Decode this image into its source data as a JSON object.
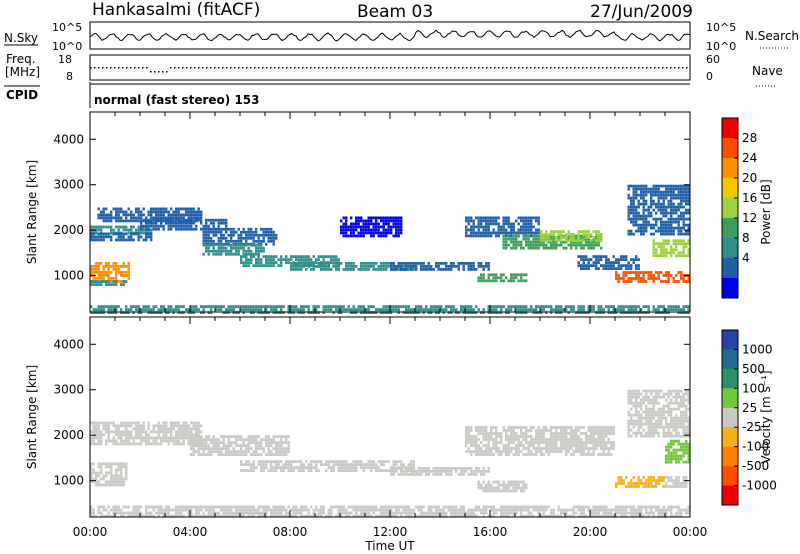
{
  "header": {
    "title": "Hankasalmi (fitACF)",
    "beam": "Beam 03",
    "date": "27/Jun/2009"
  },
  "panels": {
    "nsky": {
      "left_label": "N.Sky",
      "right_label": "N.Search",
      "left_ticks": [
        "10^5",
        "10^0"
      ],
      "right_ticks": [
        "10^5",
        "10^0"
      ]
    },
    "freq": {
      "left_label_top": "Freq.",
      "left_label_bottom": "[MHz]",
      "right_label": "Nave",
      "left_ticks": [
        "18",
        "8"
      ],
      "right_ticks": [
        "60",
        "0"
      ]
    },
    "cpid": {
      "label": "CPID",
      "text": "normal (fast stereo) 153"
    }
  },
  "colorbars": {
    "power": {
      "title": "Power [dB]",
      "tick_labels": [
        "28",
        "24",
        "20",
        "16",
        "12",
        "8",
        "4"
      ],
      "colors": [
        "#ee0000",
        "#ff4d00",
        "#ff8c00",
        "#f2c800",
        "#9ed23a",
        "#3c9e5a",
        "#2f8f8a",
        "#1f5faa",
        "#0000ee"
      ]
    },
    "velocity": {
      "title": "Velocity [m s⁻¹]",
      "tick_labels": [
        "1000",
        "500",
        "100",
        "25",
        "-25",
        "-100",
        "-500",
        "-1000"
      ],
      "colors": [
        "#2244aa",
        "#226b8a",
        "#2f8f6a",
        "#6fc83a",
        "#c8c8c4",
        "#f5b01e",
        "#ff8000",
        "#ff4d00",
        "#ee0000"
      ]
    }
  },
  "chart_data": [
    {
      "type": "heatmap",
      "name": "power",
      "xlabel": "Time UT",
      "ylabel": "Slant Range [km]",
      "xlim": [
        "00:00",
        "00:00"
      ],
      "x_ticks": [
        "00:00",
        "04:00",
        "08:00",
        "12:00",
        "16:00",
        "20:00",
        "00:00"
      ],
      "ylim": [
        200,
        4600
      ],
      "y_ticks": [
        1000,
        2000,
        3000,
        4000
      ],
      "value_range": [
        2,
        30
      ],
      "series": [
        {
          "t": [
            0,
            2.5
          ],
          "range": [
            1950,
            2100
          ],
          "value": 11
        },
        {
          "t": [
            0,
            2.5
          ],
          "range": [
            1800,
            1950
          ],
          "value": 7
        },
        {
          "t": [
            0,
            1.6
          ],
          "range": [
            900,
            1300
          ],
          "value": 23
        },
        {
          "t": [
            0,
            1.6
          ],
          "range": [
            800,
            900
          ],
          "value": 9
        },
        {
          "t": [
            0.3,
            4.5
          ],
          "range": [
            2200,
            2500
          ],
          "value": 6
        },
        {
          "t": [
            2,
            5.5
          ],
          "range": [
            2050,
            2250
          ],
          "value": 8
        },
        {
          "t": [
            4.5,
            7.5
          ],
          "range": [
            1700,
            2050
          ],
          "value": 7
        },
        {
          "t": [
            4.5,
            7
          ],
          "range": [
            1450,
            1700
          ],
          "value": 11
        },
        {
          "t": [
            6,
            10
          ],
          "range": [
            1250,
            1450
          ],
          "value": 10
        },
        {
          "t": [
            8,
            13
          ],
          "range": [
            1150,
            1300
          ],
          "value": 9
        },
        {
          "t": [
            12,
            16
          ],
          "range": [
            1150,
            1300
          ],
          "value": 6
        },
        {
          "t": [
            15.5,
            17.5
          ],
          "range": [
            900,
            1050
          ],
          "value": 12
        },
        {
          "t": [
            15,
            18
          ],
          "range": [
            1900,
            2300
          ],
          "value": 8
        },
        {
          "t": [
            16.5,
            20.5
          ],
          "range": [
            1600,
            1900
          ],
          "value": 13
        },
        {
          "t": [
            18,
            20.5
          ],
          "range": [
            1800,
            2000
          ],
          "value": 16
        },
        {
          "t": [
            19.5,
            22
          ],
          "range": [
            1150,
            1450
          ],
          "value": 7
        },
        {
          "t": [
            21,
            24
          ],
          "range": [
            900,
            1100
          ],
          "value": 25
        },
        {
          "t": [
            22.5,
            24
          ],
          "range": [
            1450,
            1800
          ],
          "value": 15
        },
        {
          "t": [
            21.5,
            24
          ],
          "range": [
            1900,
            3000
          ],
          "value": 6
        },
        {
          "t": [
            0,
            24
          ],
          "range": [
            200,
            350
          ],
          "value": 10
        },
        {
          "t": [
            10,
            12.5
          ],
          "range": [
            1900,
            2300
          ],
          "value": 5
        }
      ]
    },
    {
      "type": "heatmap",
      "name": "velocity",
      "xlabel": "Time UT",
      "ylabel": "Slant Range [km]",
      "xlim": [
        "00:00",
        "00:00"
      ],
      "x_ticks": [
        "00:00",
        "04:00",
        "08:00",
        "12:00",
        "16:00",
        "20:00",
        "00:00"
      ],
      "ylim": [
        200,
        4600
      ],
      "y_ticks": [
        1000,
        2000,
        3000,
        4000
      ],
      "value_range": [
        -1000,
        1000
      ],
      "series": [
        {
          "t": [
            0,
            1.5
          ],
          "range": [
            900,
            1400
          ],
          "value": 60
        },
        {
          "t": [
            0,
            4.5
          ],
          "range": [
            1800,
            2300
          ],
          "value": 0
        },
        {
          "t": [
            4,
            8
          ],
          "range": [
            1600,
            2000
          ],
          "value": 0
        },
        {
          "t": [
            6,
            13
          ],
          "range": [
            1200,
            1450
          ],
          "value": 0
        },
        {
          "t": [
            12,
            16
          ],
          "range": [
            1150,
            1300
          ],
          "value": 0
        },
        {
          "t": [
            15.5,
            17.5
          ],
          "range": [
            800,
            1000
          ],
          "value": 0
        },
        {
          "t": [
            15,
            21
          ],
          "range": [
            1600,
            2200
          ],
          "value": 0
        },
        {
          "t": [
            21,
            23
          ],
          "range": [
            900,
            1100
          ],
          "value": -200
        },
        {
          "t": [
            23,
            24
          ],
          "range": [
            900,
            1100
          ],
          "value": 60
        },
        {
          "t": [
            23,
            24
          ],
          "range": [
            1400,
            1900
          ],
          "value": 300
        },
        {
          "t": [
            21.5,
            24
          ],
          "range": [
            2000,
            3000
          ],
          "value": 0
        },
        {
          "t": [
            0,
            24
          ],
          "range": [
            200,
            450
          ],
          "value": 40
        }
      ]
    }
  ]
}
